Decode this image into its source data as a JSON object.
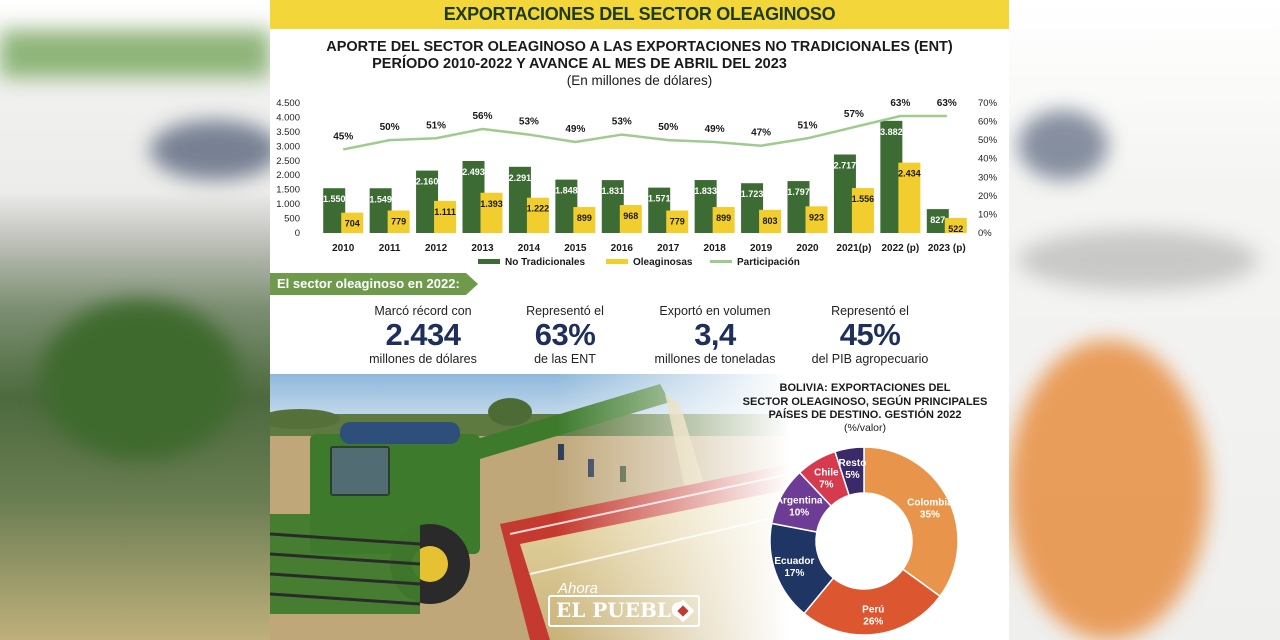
{
  "header": {
    "title": "EXPORTACIONES DEL SECTOR OLEAGINOSO"
  },
  "chart_titles": {
    "line1": "APORTE DEL SECTOR OLEAGINOSO A LAS EXPORTACIONES NO TRADICIONALES (ENT)",
    "line2": "PERÍODO 2010-2022 Y AVANCE AL MES DE ABRIL DEL 2023",
    "line3": "(En millones de dólares)"
  },
  "chart_data": [
    {
      "type": "bar",
      "title": "APORTE DEL SECTOR OLEAGINOSO A LAS EXPORTACIONES NO TRADICIONALES (ENT) PERÍODO 2010-2022 Y AVANCE AL MES DE ABRIL DEL 2023",
      "subtitle": "(En millones de dólares)",
      "categories": [
        "2010",
        "2011",
        "2012",
        "2013",
        "2014",
        "2015",
        "2016",
        "2017",
        "2018",
        "2019",
        "2020",
        "2021(p)",
        "2022 (p)",
        "2023 (p)"
      ],
      "series": [
        {
          "name": "No Tradicionales",
          "type": "bar",
          "axis": "left",
          "color": "#3c6b34",
          "values": [
            1550,
            1549,
            2160,
            2493,
            2291,
            1848,
            1831,
            1571,
            1833,
            1723,
            1797,
            2717,
            3882,
            827
          ],
          "labels": [
            "1.550",
            "1.549",
            "2.160",
            "2.493",
            "2.291",
            "1.848",
            "1.831",
            "1.571",
            "1.833",
            "1.723",
            "1.797",
            "2.717",
            "3.882",
            "827"
          ]
        },
        {
          "name": "Oleaginosas",
          "type": "bar",
          "axis": "left",
          "color": "#f2cd2e",
          "values": [
            704,
            779,
            1111,
            1393,
            1222,
            899,
            968,
            779,
            899,
            803,
            923,
            1556,
            2434,
            522
          ],
          "labels": [
            "704",
            "779",
            "1.111",
            "1.393",
            "1.222",
            "899",
            "968",
            "779",
            "899",
            "803",
            "923",
            "1.556",
            "2.434",
            "522"
          ]
        },
        {
          "name": "Participación",
          "type": "line",
          "axis": "right",
          "color": "#9fcb8f",
          "values": [
            45,
            50,
            51,
            56,
            53,
            49,
            53,
            50,
            49,
            47,
            51,
            57,
            63,
            63
          ],
          "labels": [
            "45%",
            "50%",
            "51%",
            "56%",
            "53%",
            "49%",
            "53%",
            "50%",
            "49%",
            "47%",
            "51%",
            "57%",
            "63%",
            "63%"
          ]
        }
      ],
      "y_left": {
        "ylim": [
          0,
          4500
        ],
        "ticks": [
          0,
          500,
          1000,
          1500,
          2000,
          2500,
          3000,
          3500,
          4000,
          4500
        ],
        "tick_labels": [
          "0",
          "500",
          "1.000",
          "1.500",
          "2.000",
          "2.500",
          "3.000",
          "3.500",
          "4.000",
          "4.500"
        ]
      },
      "y_right": {
        "ylim": [
          0,
          70
        ],
        "ticks": [
          0,
          10,
          20,
          30,
          40,
          50,
          60,
          70
        ],
        "tick_labels": [
          "0%",
          "10%",
          "20%",
          "30%",
          "40%",
          "50%",
          "60%",
          "70%"
        ]
      },
      "grid": false,
      "legend": "bottom"
    },
    {
      "type": "pie",
      "title": "BOLIVIA: EXPORTACIONES DEL SECTOR OLEAGINOSO, SEGÚN PRINCIPALES PAÍSES DE DESTINO. GESTIÓN 2022",
      "subtitle": "(%/valor)",
      "donut": true,
      "slices": [
        {
          "label": "Colombia",
          "value": 35,
          "value_label": "35%",
          "color": "#e8944b"
        },
        {
          "label": "Perú",
          "value": 26,
          "value_label": "26%",
          "color": "#dc5630"
        },
        {
          "label": "Ecuador",
          "value": 17,
          "value_label": "17%",
          "color": "#1f3563"
        },
        {
          "label": "Argentina",
          "value": 10,
          "value_label": "10%",
          "color": "#6d3d95"
        },
        {
          "label": "Chile",
          "value": 7,
          "value_label": "7%",
          "color": "#d63a4f"
        },
        {
          "label": "Resto",
          "value": 5,
          "value_label": "5%",
          "color": "#3a2a6a"
        }
      ]
    }
  ],
  "section": {
    "label": "El sector oleaginoso en 2022:",
    "color": "#6f9a4b"
  },
  "stats": [
    {
      "top": "Marcó récord con",
      "big": "2.434",
      "bottom": "millones de dólares"
    },
    {
      "top": "Representó el",
      "big": "63%",
      "bottom": "de las ENT"
    },
    {
      "top": "Exportó en volumen",
      "big": "3,4",
      "bottom": "millones de toneladas"
    },
    {
      "top": "Representó el",
      "big": "45%",
      "bottom": "del PIB agropecuario"
    }
  ],
  "pie_header": {
    "title_lines": [
      "BOLIVIA: EXPORTACIONES DEL",
      "SECTOR OLEAGINOSO, SEGÚN PRINCIPALES",
      "PAÍSES DE DESTINO. GESTIÓN 2022"
    ],
    "subtitle": "(%/valor)"
  },
  "logo": {
    "ahora": "Ahora",
    "name": "EL PUEBLO"
  }
}
